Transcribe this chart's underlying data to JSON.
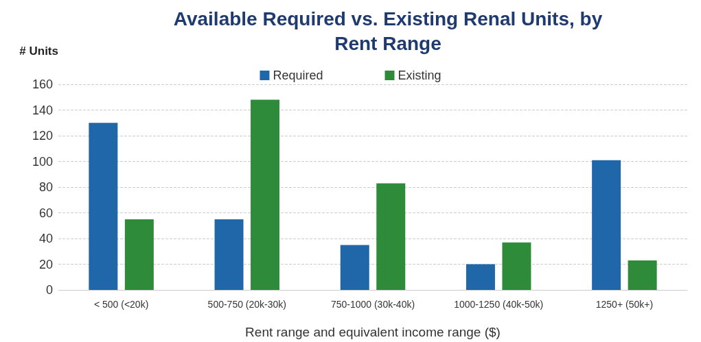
{
  "chart_data": {
    "type": "bar",
    "title": "Available Required vs. Existing Renal Units, by\nRent Range",
    "xlabel": "Rent range and equivalent income range ($)",
    "ylabel": "# Units",
    "categories": [
      "< 500 (<20k)",
      "500-750 (20k-30k)",
      "750-1000 (30k-40k)",
      "1000-1250 (40k-50k)",
      "1250+ (50k+)"
    ],
    "series": [
      {
        "name": "Required",
        "color": "#1f67a8",
        "values": [
          130,
          55,
          35,
          20,
          101
        ]
      },
      {
        "name": "Existing",
        "color": "#2e8b3a",
        "values": [
          55,
          148,
          83,
          37,
          23
        ]
      }
    ],
    "ylim": [
      0,
      160
    ],
    "yticks": [
      0,
      20,
      40,
      60,
      80,
      100,
      120,
      140,
      160
    ],
    "grid": "y",
    "legend": "top"
  }
}
